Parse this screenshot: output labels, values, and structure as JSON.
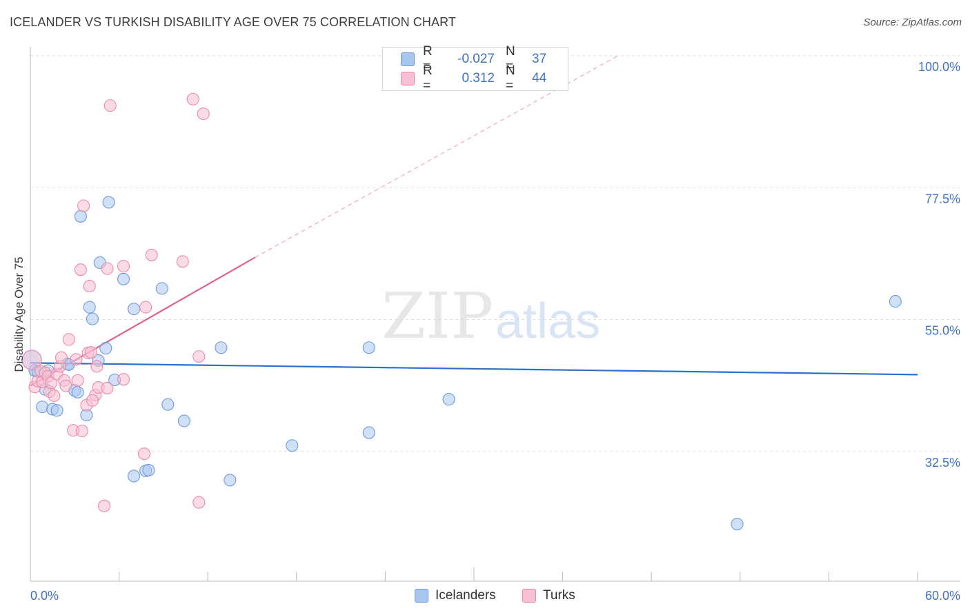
{
  "title": "ICELANDER VS TURKISH DISABILITY AGE OVER 75 CORRELATION CHART",
  "source": "Source: ZipAtlas.com",
  "stats": [
    {
      "r_label": "R =",
      "r_value": "-0.027",
      "n_label": "N =",
      "n_value": "37",
      "color": "#a9c6ef",
      "border": "#6f9ad9"
    },
    {
      "r_label": "R =",
      "r_value": "0.312",
      "n_label": "N =",
      "n_value": "44",
      "color": "#f7bfd1",
      "border": "#e98aaa"
    }
  ],
  "legend": [
    {
      "label": "Icelanders",
      "color": "#a9c6ef",
      "border": "#6f9ad9"
    },
    {
      "label": "Turks",
      "color": "#f7bfd1",
      "border": "#e98aaa"
    }
  ],
  "watermark": {
    "zip": "ZIP",
    "atlas": "atlas"
  },
  "chart_data": {
    "type": "scatter",
    "title": "ICELANDER VS TURKISH DISABILITY AGE OVER 75 CORRELATION CHART",
    "xlabel": "",
    "ylabel": "Disability Age Over 75",
    "xlim": [
      0,
      60
    ],
    "ylim": [
      14,
      102
    ],
    "x_tick_labels": [
      {
        "value": 0,
        "label": "0.0%"
      },
      {
        "value": 60,
        "label": "60.0%"
      }
    ],
    "y_tick_labels": [
      {
        "value": 100,
        "label": "100.0%"
      },
      {
        "value": 77.5,
        "label": "77.5%"
      },
      {
        "value": 55,
        "label": "55.0%"
      },
      {
        "value": 32.5,
        "label": "32.5%"
      }
    ],
    "grid": true,
    "legend_position": "bottom-center",
    "series": [
      {
        "name": "Icelanders",
        "color": "#a9c6ef",
        "stroke": "#6f9ad9",
        "points": [
          [
            0.1,
            50.0
          ],
          [
            0.3,
            48.2
          ],
          [
            0.5,
            48.0
          ],
          [
            0.8,
            42.0
          ],
          [
            1.0,
            45.0
          ],
          [
            1.2,
            48.2
          ],
          [
            1.5,
            41.6
          ],
          [
            1.8,
            41.4
          ],
          [
            2.5,
            49.3
          ],
          [
            2.6,
            49.2
          ],
          [
            3.0,
            44.8
          ],
          [
            3.2,
            44.5
          ],
          [
            3.4,
            74.5
          ],
          [
            3.8,
            40.6
          ],
          [
            4.0,
            59.0
          ],
          [
            4.2,
            57.0
          ],
          [
            4.6,
            49.9
          ],
          [
            4.7,
            66.6
          ],
          [
            5.1,
            52.0
          ],
          [
            5.3,
            76.9
          ],
          [
            5.7,
            46.6
          ],
          [
            6.3,
            63.8
          ],
          [
            7.0,
            58.7
          ],
          [
            7.0,
            30.2
          ],
          [
            7.8,
            31.1
          ],
          [
            8.0,
            31.2
          ],
          [
            8.9,
            62.2
          ],
          [
            9.3,
            42.4
          ],
          [
            10.4,
            39.6
          ],
          [
            12.9,
            52.1
          ],
          [
            13.5,
            29.5
          ],
          [
            17.7,
            35.4
          ],
          [
            22.9,
            52.1
          ],
          [
            22.9,
            37.6
          ],
          [
            28.3,
            43.3
          ],
          [
            47.8,
            22.0
          ],
          [
            58.5,
            60.0
          ]
        ]
      },
      {
        "name": "Turks",
        "color": "#f7bfd1",
        "stroke": "#e98aaa",
        "points": [
          [
            0.1,
            50.0
          ],
          [
            0.3,
            45.4
          ],
          [
            0.5,
            46.4
          ],
          [
            0.7,
            48.1
          ],
          [
            0.8,
            46.3
          ],
          [
            1.0,
            47.8
          ],
          [
            1.2,
            47.2
          ],
          [
            1.3,
            44.6
          ],
          [
            1.4,
            46.1
          ],
          [
            1.6,
            43.9
          ],
          [
            1.8,
            47.6
          ],
          [
            2.0,
            48.9
          ],
          [
            2.1,
            50.4
          ],
          [
            2.3,
            46.5
          ],
          [
            2.4,
            45.6
          ],
          [
            2.6,
            53.5
          ],
          [
            2.9,
            38.0
          ],
          [
            3.1,
            50.1
          ],
          [
            3.2,
            46.5
          ],
          [
            3.4,
            65.4
          ],
          [
            3.5,
            37.9
          ],
          [
            3.6,
            76.3
          ],
          [
            3.8,
            42.3
          ],
          [
            3.9,
            51.2
          ],
          [
            4.0,
            62.6
          ],
          [
            4.4,
            44.0
          ],
          [
            4.1,
            51.3
          ],
          [
            4.2,
            43.1
          ],
          [
            4.5,
            48.9
          ],
          [
            4.6,
            45.3
          ],
          [
            5.0,
            25.1
          ],
          [
            5.2,
            65.6
          ],
          [
            5.2,
            45.2
          ],
          [
            5.4,
            93.4
          ],
          [
            6.3,
            46.7
          ],
          [
            6.3,
            66.0
          ],
          [
            7.7,
            34.0
          ],
          [
            7.8,
            59.0
          ],
          [
            8.2,
            67.9
          ],
          [
            10.3,
            66.8
          ],
          [
            11.0,
            94.5
          ],
          [
            11.4,
            25.7
          ],
          [
            11.4,
            50.6
          ],
          [
            11.7,
            92.0
          ]
        ]
      }
    ],
    "trend_lines": [
      {
        "series": "Icelanders",
        "x1": 0,
        "y1": 49.5,
        "x2": 60,
        "y2": 47.5
      },
      {
        "series": "Turks",
        "x1": 0,
        "y1": 45.6,
        "x2": 15.2,
        "y2": 67.5,
        "dashed_extension_to": [
          39.8,
          102
        ]
      }
    ]
  }
}
